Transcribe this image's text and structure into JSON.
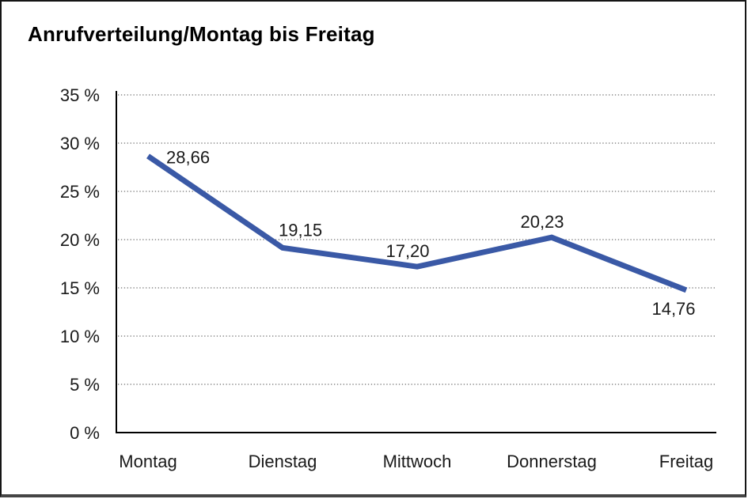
{
  "chart_data": {
    "type": "line",
    "title": "Anrufverteilung/Montag bis Freitag",
    "categories": [
      "Montag",
      "Dienstag",
      "Mittwoch",
      "Donnerstag",
      "Freitag"
    ],
    "series": [
      {
        "name": "Anrufverteilung",
        "values": [
          28.66,
          19.15,
          17.2,
          20.23,
          14.76
        ],
        "value_labels": [
          "28,66",
          "19,15",
          "17,20",
          "20,23",
          "14,76"
        ]
      }
    ],
    "xlabel": "",
    "ylabel": "",
    "ylim": [
      0,
      35
    ],
    "y_tick_step": 5,
    "y_tick_labels": [
      "0 %",
      "5 %",
      "10 %",
      "15 %",
      "20 %",
      "25 %",
      "30 %",
      "35 %"
    ],
    "grid": "dotted horizontal",
    "legend": "none",
    "line_color": "#3A59A6",
    "axis_color": "#000000",
    "grid_color": "#6e6e6e",
    "label_color": "#1a1a1a"
  }
}
